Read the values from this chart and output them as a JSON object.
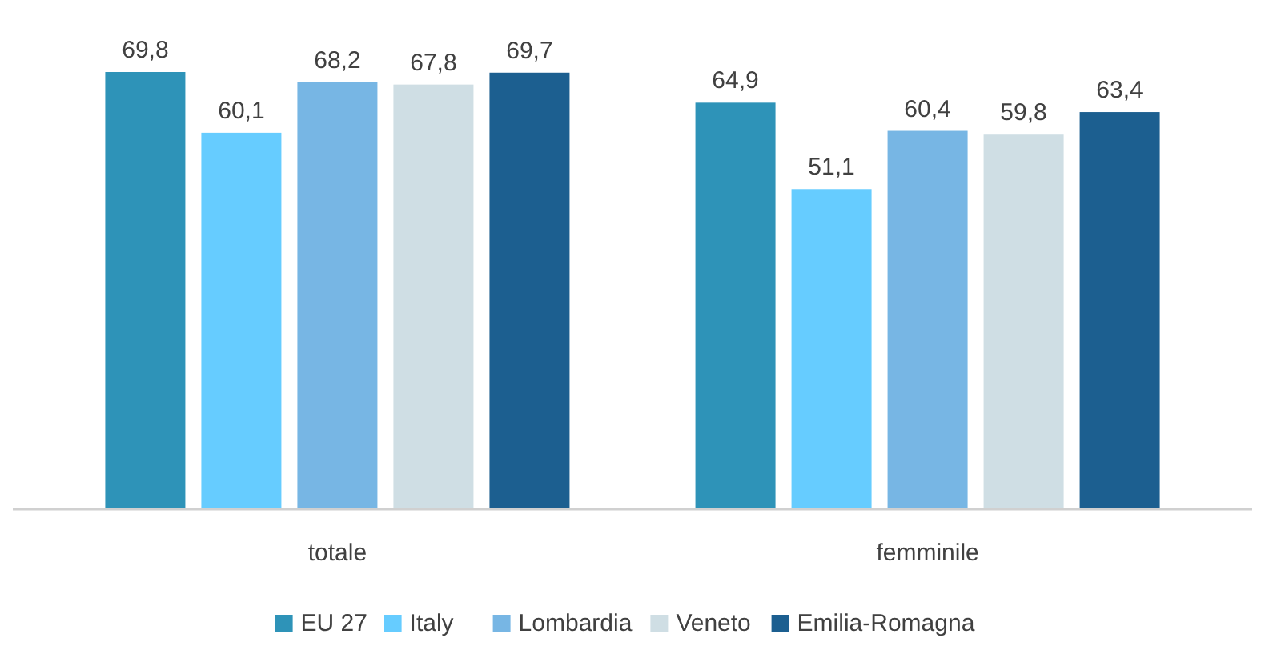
{
  "chart_data": {
    "type": "bar",
    "categories": [
      "totale",
      "femminile"
    ],
    "series": [
      {
        "name": "EU 27",
        "color": "#2e93b8",
        "values": [
          69.8,
          64.9
        ],
        "value_labels": [
          "69,8",
          "64,9"
        ]
      },
      {
        "name": "Italy",
        "color": "#66ccff",
        "values": [
          60.1,
          51.1
        ],
        "value_labels": [
          "60,1",
          "51,1"
        ]
      },
      {
        "name": "Lombardia",
        "color": "#77b6e4",
        "values": [
          68.2,
          60.4
        ],
        "value_labels": [
          "68,2",
          "60,4"
        ]
      },
      {
        "name": "Veneto",
        "color": "#cfdee4",
        "values": [
          67.8,
          59.8
        ],
        "value_labels": [
          "67,8",
          "59,8"
        ]
      },
      {
        "name": "Emilia-Romagna",
        "color": "#1c5f90",
        "values": [
          69.7,
          63.4
        ],
        "value_labels": [
          "69,7",
          "63,4"
        ]
      }
    ],
    "legend": "bottom"
  }
}
